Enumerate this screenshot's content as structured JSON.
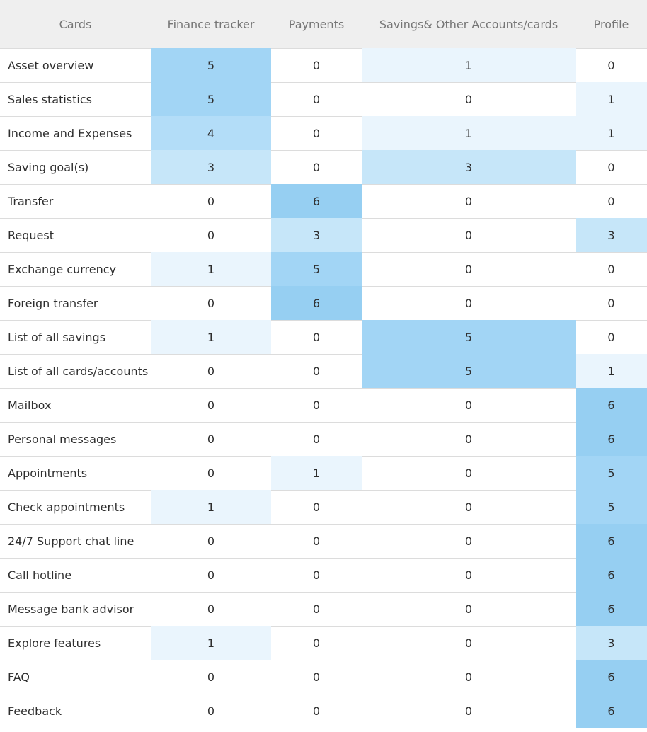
{
  "chart_data": {
    "type": "heatmap",
    "corner_label": "Cards",
    "columns": [
      "Finance tracker",
      "Payments",
      "Savings& Other Accounts/cards",
      "Profile"
    ],
    "rows": [
      "Asset overview",
      "Sales statistics",
      "Income and Expenses",
      "Saving goal(s)",
      "Transfer",
      "Request",
      "Exchange currency",
      "Foreign transfer",
      "List of all savings",
      "List of all cards/accounts",
      "Mailbox",
      "Personal messages",
      "Appointments",
      "Check appointments",
      "24/7 Support chat line",
      "Call hotline",
      "Message bank advisor",
      "Explore features",
      "FAQ",
      "Feedback"
    ],
    "values": [
      [
        5,
        0,
        1,
        0
      ],
      [
        5,
        0,
        0,
        1
      ],
      [
        4,
        0,
        1,
        1
      ],
      [
        3,
        0,
        3,
        0
      ],
      [
        0,
        6,
        0,
        0
      ],
      [
        0,
        3,
        0,
        3
      ],
      [
        1,
        5,
        0,
        0
      ],
      [
        0,
        6,
        0,
        0
      ],
      [
        1,
        0,
        5,
        0
      ],
      [
        0,
        0,
        5,
        1
      ],
      [
        0,
        0,
        0,
        6
      ],
      [
        0,
        0,
        0,
        6
      ],
      [
        0,
        1,
        0,
        5
      ],
      [
        1,
        0,
        0,
        5
      ],
      [
        0,
        0,
        0,
        6
      ],
      [
        0,
        0,
        0,
        6
      ],
      [
        0,
        0,
        0,
        6
      ],
      [
        1,
        0,
        0,
        3
      ],
      [
        0,
        0,
        0,
        6
      ],
      [
        0,
        0,
        0,
        6
      ]
    ],
    "color_scale": {
      "0": "#ffffff",
      "1": "#eaf5fd",
      "3": "#c6e6f9",
      "4": "#b3ddf8",
      "5": "#a2d5f5",
      "6": "#96cff2"
    }
  }
}
